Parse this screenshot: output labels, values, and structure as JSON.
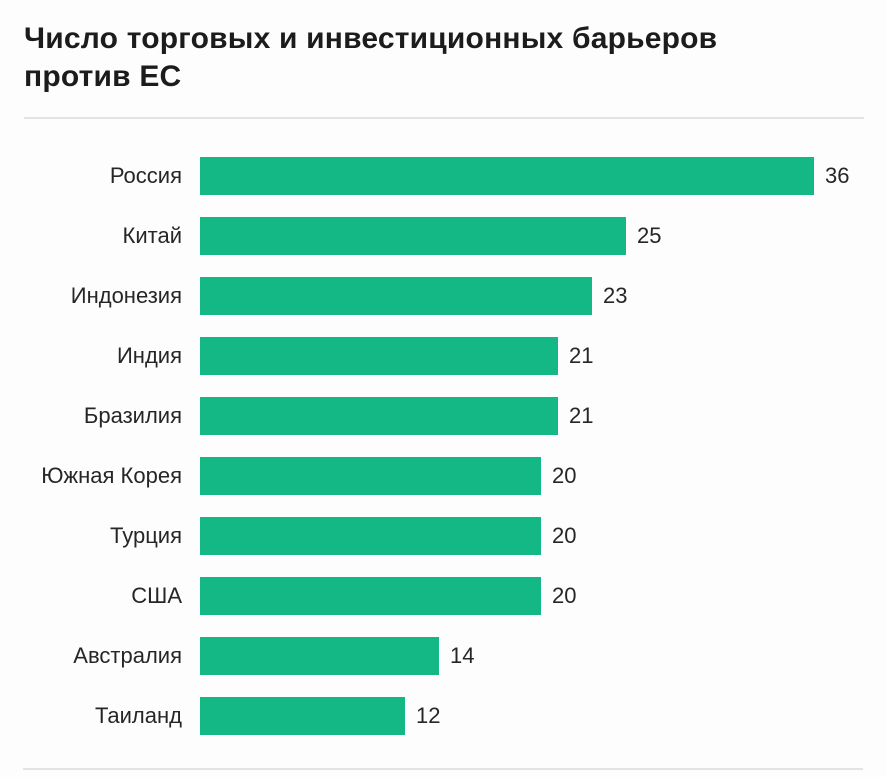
{
  "title": "Число торговых и инвестиционных барьеров против ЕС",
  "colors": {
    "bar": "#14b884",
    "title_text": "#1c1c1c",
    "label_text": "#262626",
    "divider": "#e3e3e3",
    "background": "#fdfdfd"
  },
  "chart_data": {
    "type": "bar",
    "orientation": "horizontal",
    "title": "Число торговых и инвестиционных барьеров против ЕС",
    "categories": [
      "Россия",
      "Китай",
      "Индонезия",
      "Индия",
      "Бразилия",
      "Южная Корея",
      "Турция",
      "США",
      "Австралия",
      "Таиланд"
    ],
    "values": [
      36,
      25,
      23,
      21,
      21,
      20,
      20,
      20,
      14,
      12
    ],
    "xlim": [
      0,
      36
    ],
    "grid": false,
    "legend": false,
    "value_labels_shown": true
  }
}
